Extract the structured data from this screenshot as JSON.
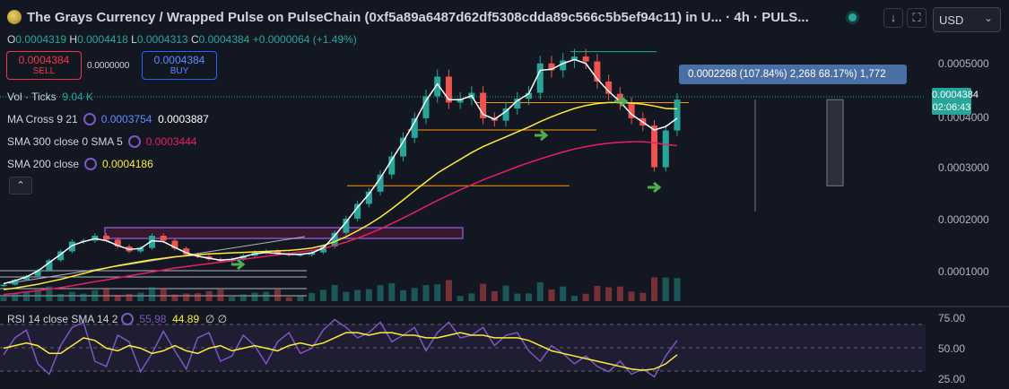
{
  "header": {
    "title": "The Grays Currency / Wrapped Pulse on PulseChain (0xf5a89a6487d62df5308cdda89c566c5b5ef94c11) in U... · 4h · PULS...",
    "currency": "USD",
    "ohlc": {
      "o_label": "O",
      "o": "0.0004319",
      "h_label": "H",
      "h": "0.0004418",
      "l_label": "L",
      "l": "0.0004313",
      "c_label": "C",
      "c": "0.0004384",
      "change": "+0.0000064 (+1.49%)"
    }
  },
  "trade": {
    "sell_price": "0.0004384",
    "sell_label": "SELL",
    "spread": "0.0000000",
    "buy_price": "0.0004384",
    "buy_label": "BUY"
  },
  "indicators": {
    "vol_label": "Vol · Ticks",
    "vol_value": "9.04 K",
    "ma_cross_label": "MA Cross 9 21",
    "ma_cross_v1": "0.0003754",
    "ma_cross_v2": "0.0003887",
    "sma300_label": "SMA 300 close 0 SMA 5",
    "sma300_value": "0.0003444",
    "sma200_label": "SMA 200 close",
    "sma200_value": "0.0004186"
  },
  "measure_tooltip": "0.0002268 (107.84%) 2,268   68.17%) 1,772",
  "price_axis": {
    "ticks": [
      "0.0005000",
      "0.0004000",
      "0.0003000",
      "0.0002000",
      "0.0001000"
    ],
    "last_price": "0.0004384",
    "countdown": "02:06:43"
  },
  "rsi": {
    "label": "RSI 14 close SMA 14 2",
    "rsi_value": "55.98",
    "sma_value": "44.89",
    "extra": "∅ ∅",
    "ticks": [
      "75.00",
      "50.00",
      "25.00"
    ]
  },
  "colors": {
    "background": "#131722",
    "up": "#26a69a",
    "down": "#ef5350",
    "ma_fast": "#ffffff",
    "ma_cross_value": "#2962ff",
    "sma300": "#e91e63",
    "sma200": "#ffeb3b",
    "rsi_line": "#7e57c2",
    "rsi_sma": "#ffeb3b",
    "arrows": "#4caf50",
    "levels": "#ff9800"
  },
  "chart_data": {
    "type": "line",
    "y_range_price": [
      3e-05,
      0.00055
    ],
    "y_range_rsi": [
      20,
      80
    ],
    "close": [
      6e-05,
      7e-05,
      7.8e-05,
      9e-05,
      0.00011,
      0.000128,
      0.000148,
      0.00015,
      0.00016,
      0.000152,
      0.000138,
      0.000128,
      0.000135,
      0.00016,
      0.00015,
      0.000134,
      0.000122,
      0.000118,
      0.000112,
      0.000108,
      0.000112,
      0.000119,
      0.000126,
      0.000128,
      0.000123,
      0.000121,
      0.000121,
      0.000126,
      0.000138,
      0.000166,
      0.000195,
      0.000225,
      0.00025,
      0.000285,
      0.000322,
      0.00036,
      0.0004,
      0.000445,
      0.000485,
      0.000432,
      0.00044,
      0.000452,
      0.0004,
      0.000395,
      0.00042,
      0.00044,
      0.000452,
      0.000512,
      0.000498,
      0.000518,
      0.000526,
      0.000516,
      0.000475,
      0.00045,
      0.00043,
      0.0004,
      0.000385,
      0.0003,
      0.000375,
      0.000438
    ],
    "ma_fast": [
      6.2e-05,
      6.8e-05,
      7.6e-05,
      8.8e-05,
      0.000105,
      0.000122,
      0.00014,
      0.000148,
      0.000154,
      0.00015,
      0.00014,
      0.000132,
      0.000134,
      0.00015,
      0.000148,
      0.000136,
      0.000125,
      0.000118,
      0.000114,
      0.00011,
      0.000112,
      0.000117,
      0.000123,
      0.000126,
      0.000124,
      0.000122,
      0.000122,
      0.000125,
      0.000135,
      0.00016,
      0.000188,
      0.000218,
      0.000245,
      0.000278,
      0.000315,
      0.000352,
      0.000392,
      0.000436,
      0.00047,
      0.000438,
      0.000438,
      0.000446,
      0.000408,
      0.000398,
      0.000414,
      0.000436,
      0.00045,
      0.000498,
      0.0005,
      0.000512,
      0.00052,
      0.000512,
      0.00048,
      0.000455,
      0.000434,
      0.000408,
      0.000392,
      0.000376,
      0.000383,
      0.0004
    ],
    "sma200": [
      5e-05,
      5.3e-05,
      5.7e-05,
      6.1e-05,
      6.6e-05,
      7.1e-05,
      7.7e-05,
      8.3e-05,
      8.9e-05,
      9.4e-05,
      9.9e-05,
      0.000103,
      0.000107,
      0.000111,
      0.000114,
      0.000117,
      0.000119,
      0.000121,
      0.000123,
      0.000124,
      0.000125,
      0.000126,
      0.000127,
      0.000128,
      0.000129,
      0.00013,
      0.000132,
      0.000135,
      0.00014,
      0.000148,
      0.000158,
      0.00017,
      0.000183,
      0.000198,
      0.000215,
      0.000233,
      0.000252,
      0.00027,
      0.000288,
      0.000302,
      0.000316,
      0.00033,
      0.000342,
      0.000352,
      0.000362,
      0.000372,
      0.000382,
      0.000393,
      0.000403,
      0.000412,
      0.00042,
      0.000426,
      0.00043,
      0.000432,
      0.000432,
      0.000431,
      0.000429,
      0.000425,
      0.00042,
      0.000419
    ],
    "sma300": [
      4e-05,
      4.2e-05,
      4.5e-05,
      4.8e-05,
      5.1e-05,
      5.4e-05,
      5.8e-05,
      6.2e-05,
      6.6e-05,
      7e-05,
      7.4e-05,
      7.8e-05,
      8.2e-05,
      8.6e-05,
      9e-05,
      9.4e-05,
      9.7e-05,
      0.0001,
      0.000103,
      0.000106,
      0.000109,
      0.000112,
      0.000115,
      0.000118,
      0.000121,
      0.000124,
      0.000127,
      0.00013,
      0.000134,
      0.00014,
      0.000147,
      0.000155,
      0.000164,
      0.000174,
      0.000185,
      0.000196,
      0.000208,
      0.00022,
      0.000232,
      0.000243,
      0.000254,
      0.000264,
      0.000274,
      0.000283,
      0.000292,
      0.000301,
      0.000309,
      0.000317,
      0.000324,
      0.000331,
      0.000337,
      0.000342,
      0.000346,
      0.000349,
      0.000351,
      0.000352,
      0.000352,
      0.00035,
      0.000346,
      0.000344
    ],
    "rsi": [
      45,
      58,
      64,
      38,
      30,
      52,
      66,
      70,
      40,
      36,
      60,
      55,
      32,
      46,
      63,
      48,
      34,
      58,
      62,
      40,
      44,
      60,
      52,
      38,
      55,
      62,
      46,
      50,
      64,
      72,
      66,
      58,
      62,
      70,
      55,
      60,
      66,
      48,
      62,
      70,
      58,
      60,
      66,
      52,
      60,
      62,
      48,
      40,
      52,
      46,
      38,
      44,
      36,
      32,
      40,
      30,
      34,
      28,
      44,
      56
    ],
    "rsi_sma": [
      50,
      52,
      54,
      52,
      46,
      46,
      52,
      58,
      56,
      50,
      48,
      52,
      50,
      46,
      48,
      52,
      48,
      46,
      50,
      52,
      48,
      50,
      52,
      50,
      48,
      52,
      54,
      52,
      54,
      58,
      62,
      62,
      60,
      62,
      62,
      60,
      60,
      58,
      58,
      60,
      62,
      60,
      60,
      58,
      58,
      58,
      56,
      52,
      48,
      46,
      44,
      42,
      40,
      38,
      36,
      34,
      33,
      34,
      38,
      45
    ],
    "horizontal_levels": [
      0.000432,
      0.000376,
      0.000262
    ],
    "top_level": 0.000536,
    "right_bars": [
      {
        "from": 0.00021,
        "to": 0.000438
      },
      {
        "from": 0.000262,
        "to": 0.000438
      }
    ]
  }
}
